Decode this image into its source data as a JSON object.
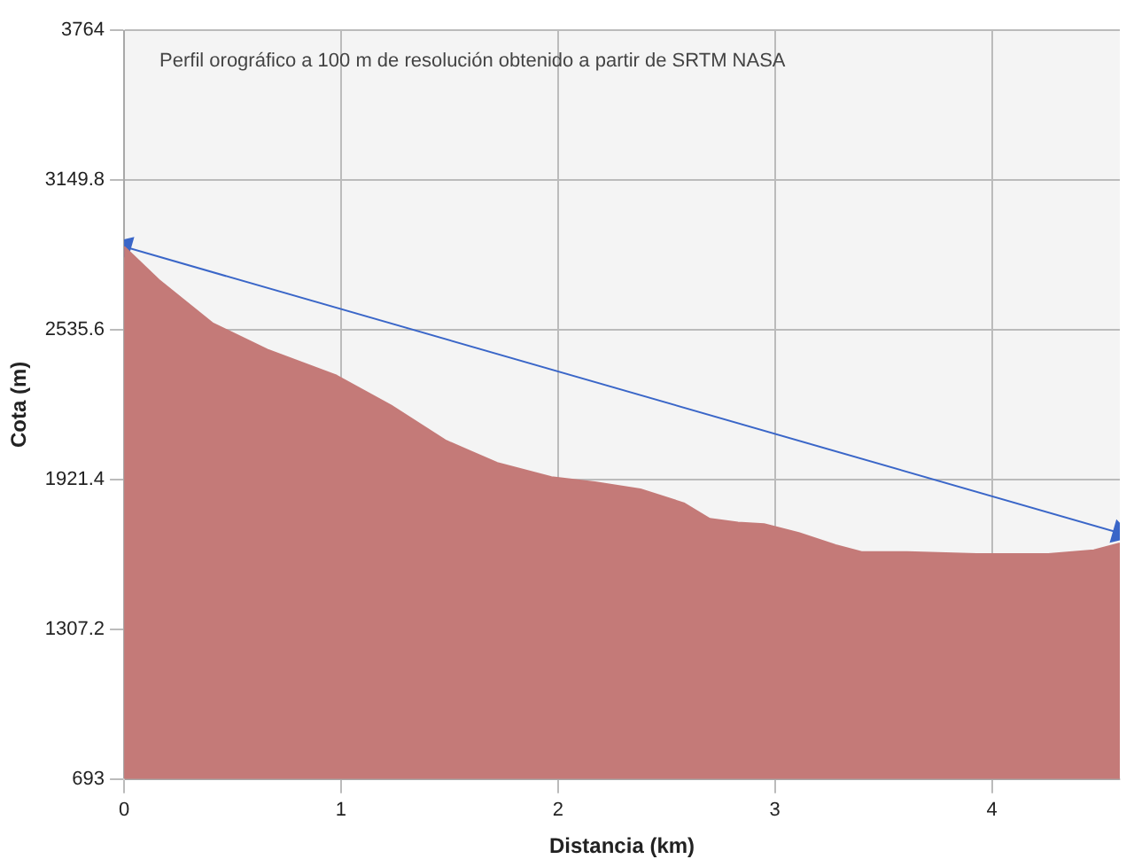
{
  "chart_data": {
    "type": "area",
    "title": "Perfil orográfico a 100 m de resolución obtenido a partir de SRTM NASA",
    "xlabel": "Distancia (km)",
    "ylabel": "Cota (m)",
    "xlim": [
      0,
      4.59
    ],
    "xticks": [
      0,
      1,
      2,
      3,
      4
    ],
    "ylim": [
      693,
      3764
    ],
    "yticks": [
      693,
      1307.2,
      1921.4,
      2535.6,
      3149.8,
      3764
    ],
    "grid": true,
    "legend": false,
    "series": [
      {
        "color": "#c47a78",
        "x": [
          0,
          0.16,
          0.41,
          0.66,
          0.98,
          1.23,
          1.48,
          1.72,
          1.97,
          2.17,
          2.38,
          2.58,
          2.7,
          2.83,
          2.95,
          3.11,
          3.28,
          3.4,
          3.61,
          3.93,
          4.26,
          4.47,
          4.59
        ],
        "values": [
          2876,
          2740,
          2561,
          2454,
          2347,
          2225,
          2082,
          1989,
          1931,
          1910,
          1881,
          1824,
          1760,
          1745,
          1738,
          1702,
          1652,
          1624,
          1624,
          1616,
          1616,
          1631,
          1659
        ]
      },
      {
        "type": "line",
        "color": "#3a66c8",
        "marker": "triangle",
        "x": [
          0,
          4.59
        ],
        "values": [
          2876,
          1702
        ]
      }
    ]
  }
}
